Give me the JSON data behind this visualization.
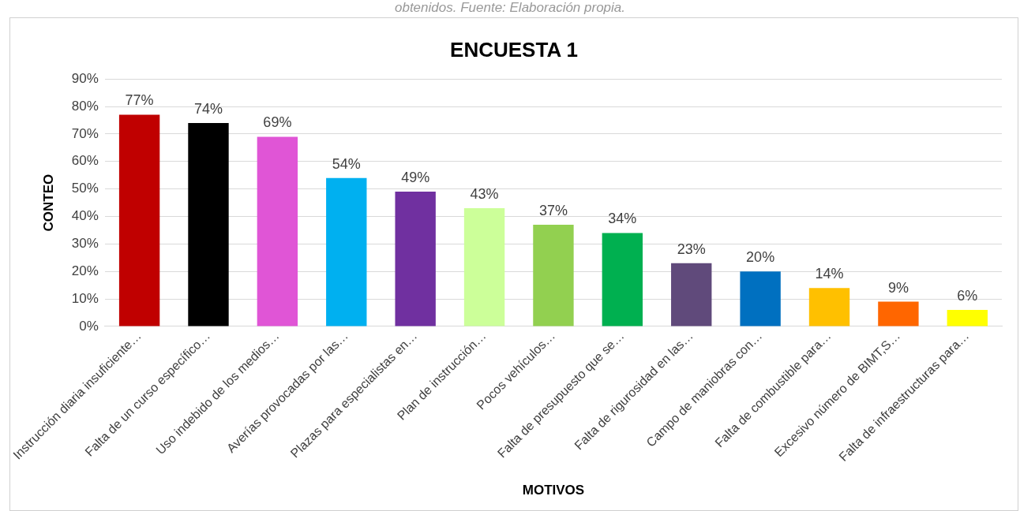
{
  "chart_data": {
    "type": "bar",
    "title": "ENCUESTA 1",
    "xlabel": "MOTIVOS",
    "ylabel": "CONTEO",
    "annotations": [
      "obtenidos. Fuente: Elaboración propia."
    ],
    "categories": [
      "Instrucción diaria insuficiente…",
      "Falta de un curso específico…",
      "Uso indebido de los medios…",
      "Averías provocadas por las…",
      "Plazas para especialistas en…",
      "Plan de instrucción…",
      "Pocos vehículos…",
      "Falta de presupuesto que se…",
      "Falta de rigurosidad en las…",
      "Campo de maniobras con…",
      "Falta de combustible para…",
      "Excesivo número de BIMT,S…",
      "Falta de infraestructuras para…"
    ],
    "values": [
      77,
      74,
      69,
      54,
      49,
      43,
      37,
      34,
      23,
      20,
      14,
      9,
      6
    ],
    "value_labels": [
      "77%",
      "74%",
      "69%",
      "54%",
      "49%",
      "43%",
      "37%",
      "34%",
      "23%",
      "20%",
      "14%",
      "9%",
      "6%"
    ],
    "colors": [
      "#c00000",
      "#000000",
      "#e055d6",
      "#00b0f0",
      "#7030a0",
      "#ccff99",
      "#92d050",
      "#00b050",
      "#604a7b",
      "#0070c0",
      "#ffc000",
      "#ff6600",
      "#ffff00"
    ],
    "ylim": [
      0,
      90
    ],
    "yticks": [
      {
        "value": 0,
        "label": "0%"
      },
      {
        "value": 10,
        "label": "10%"
      },
      {
        "value": 20,
        "label": "20%"
      },
      {
        "value": 30,
        "label": "30%"
      },
      {
        "value": 40,
        "label": "40%"
      },
      {
        "value": 50,
        "label": "50%"
      },
      {
        "value": 60,
        "label": "60%"
      },
      {
        "value": 70,
        "label": "70%"
      },
      {
        "value": 80,
        "label": "80%"
      },
      {
        "value": 90,
        "label": "90%"
      }
    ],
    "grid": "y",
    "legend": false
  }
}
